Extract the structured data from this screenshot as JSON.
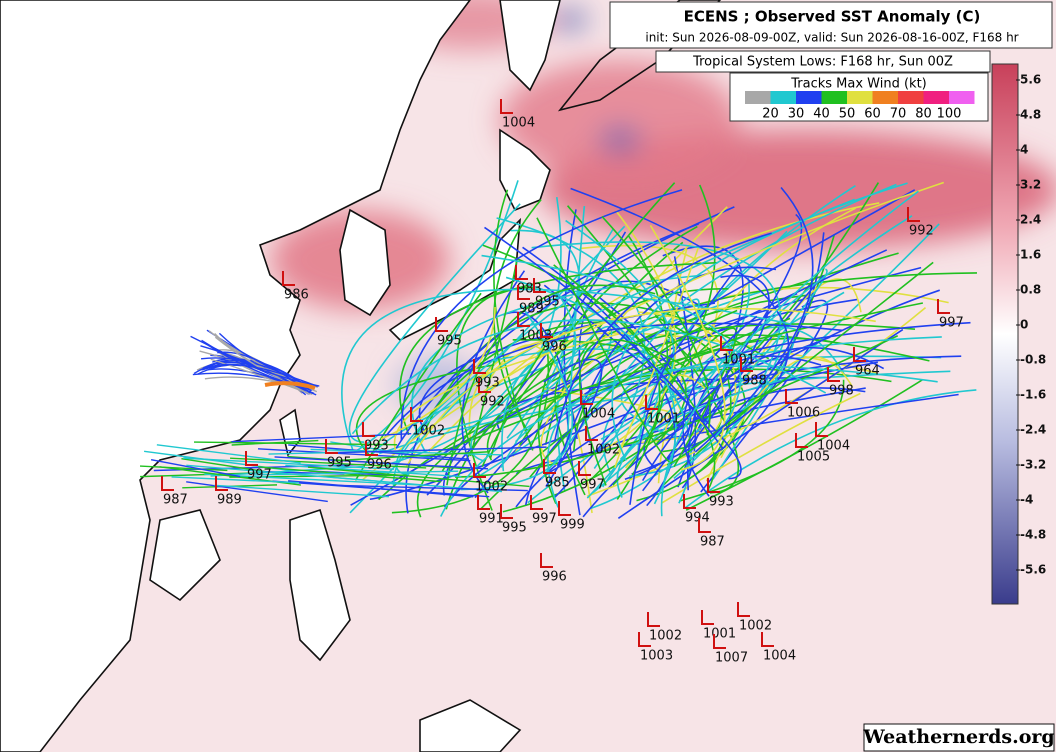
{
  "header": {
    "title": "ECENS ; Observed SST Anomaly (C)",
    "subtitle": "init: Sun 2026-08-09-00Z, valid: Sun 2026-08-16-00Z, F168 hr"
  },
  "legend": {
    "label": "Tropical System Lows: F168 hr, Sun 00Z",
    "title": "Tracks Max Wind (kt)",
    "ticks": [
      20,
      30,
      40,
      50,
      60,
      70,
      80,
      100
    ],
    "colors": [
      "#a8a8a8",
      "#20c8d0",
      "#2040f0",
      "#20c020",
      "#e0e040",
      "#f08020",
      "#f04040",
      "#f02080",
      "#f060f0"
    ]
  },
  "colorbar": {
    "ticks": [
      5.6,
      4.8,
      4,
      3.2,
      2.4,
      1.6,
      0.8,
      0,
      -0.8,
      -1.6,
      -2.4,
      -3.2,
      -4,
      -4.8,
      -5.6
    ]
  },
  "lows": [
    1004,
    992,
    986,
    997,
    983,
    995,
    989,
    1003,
    995,
    996,
    1001,
    988,
    964,
    998,
    1006,
    1004,
    1001,
    1002,
    993,
    995,
    996,
    997,
    989,
    987,
    1005,
    1004,
    1002,
    985,
    997,
    993,
    994,
    987,
    991,
    995,
    997,
    999,
    996,
    1002,
    1001,
    1002,
    1003,
    1007,
    1004,
    992,
    993,
    1002
  ],
  "watermark": "Weathernerds.org"
}
